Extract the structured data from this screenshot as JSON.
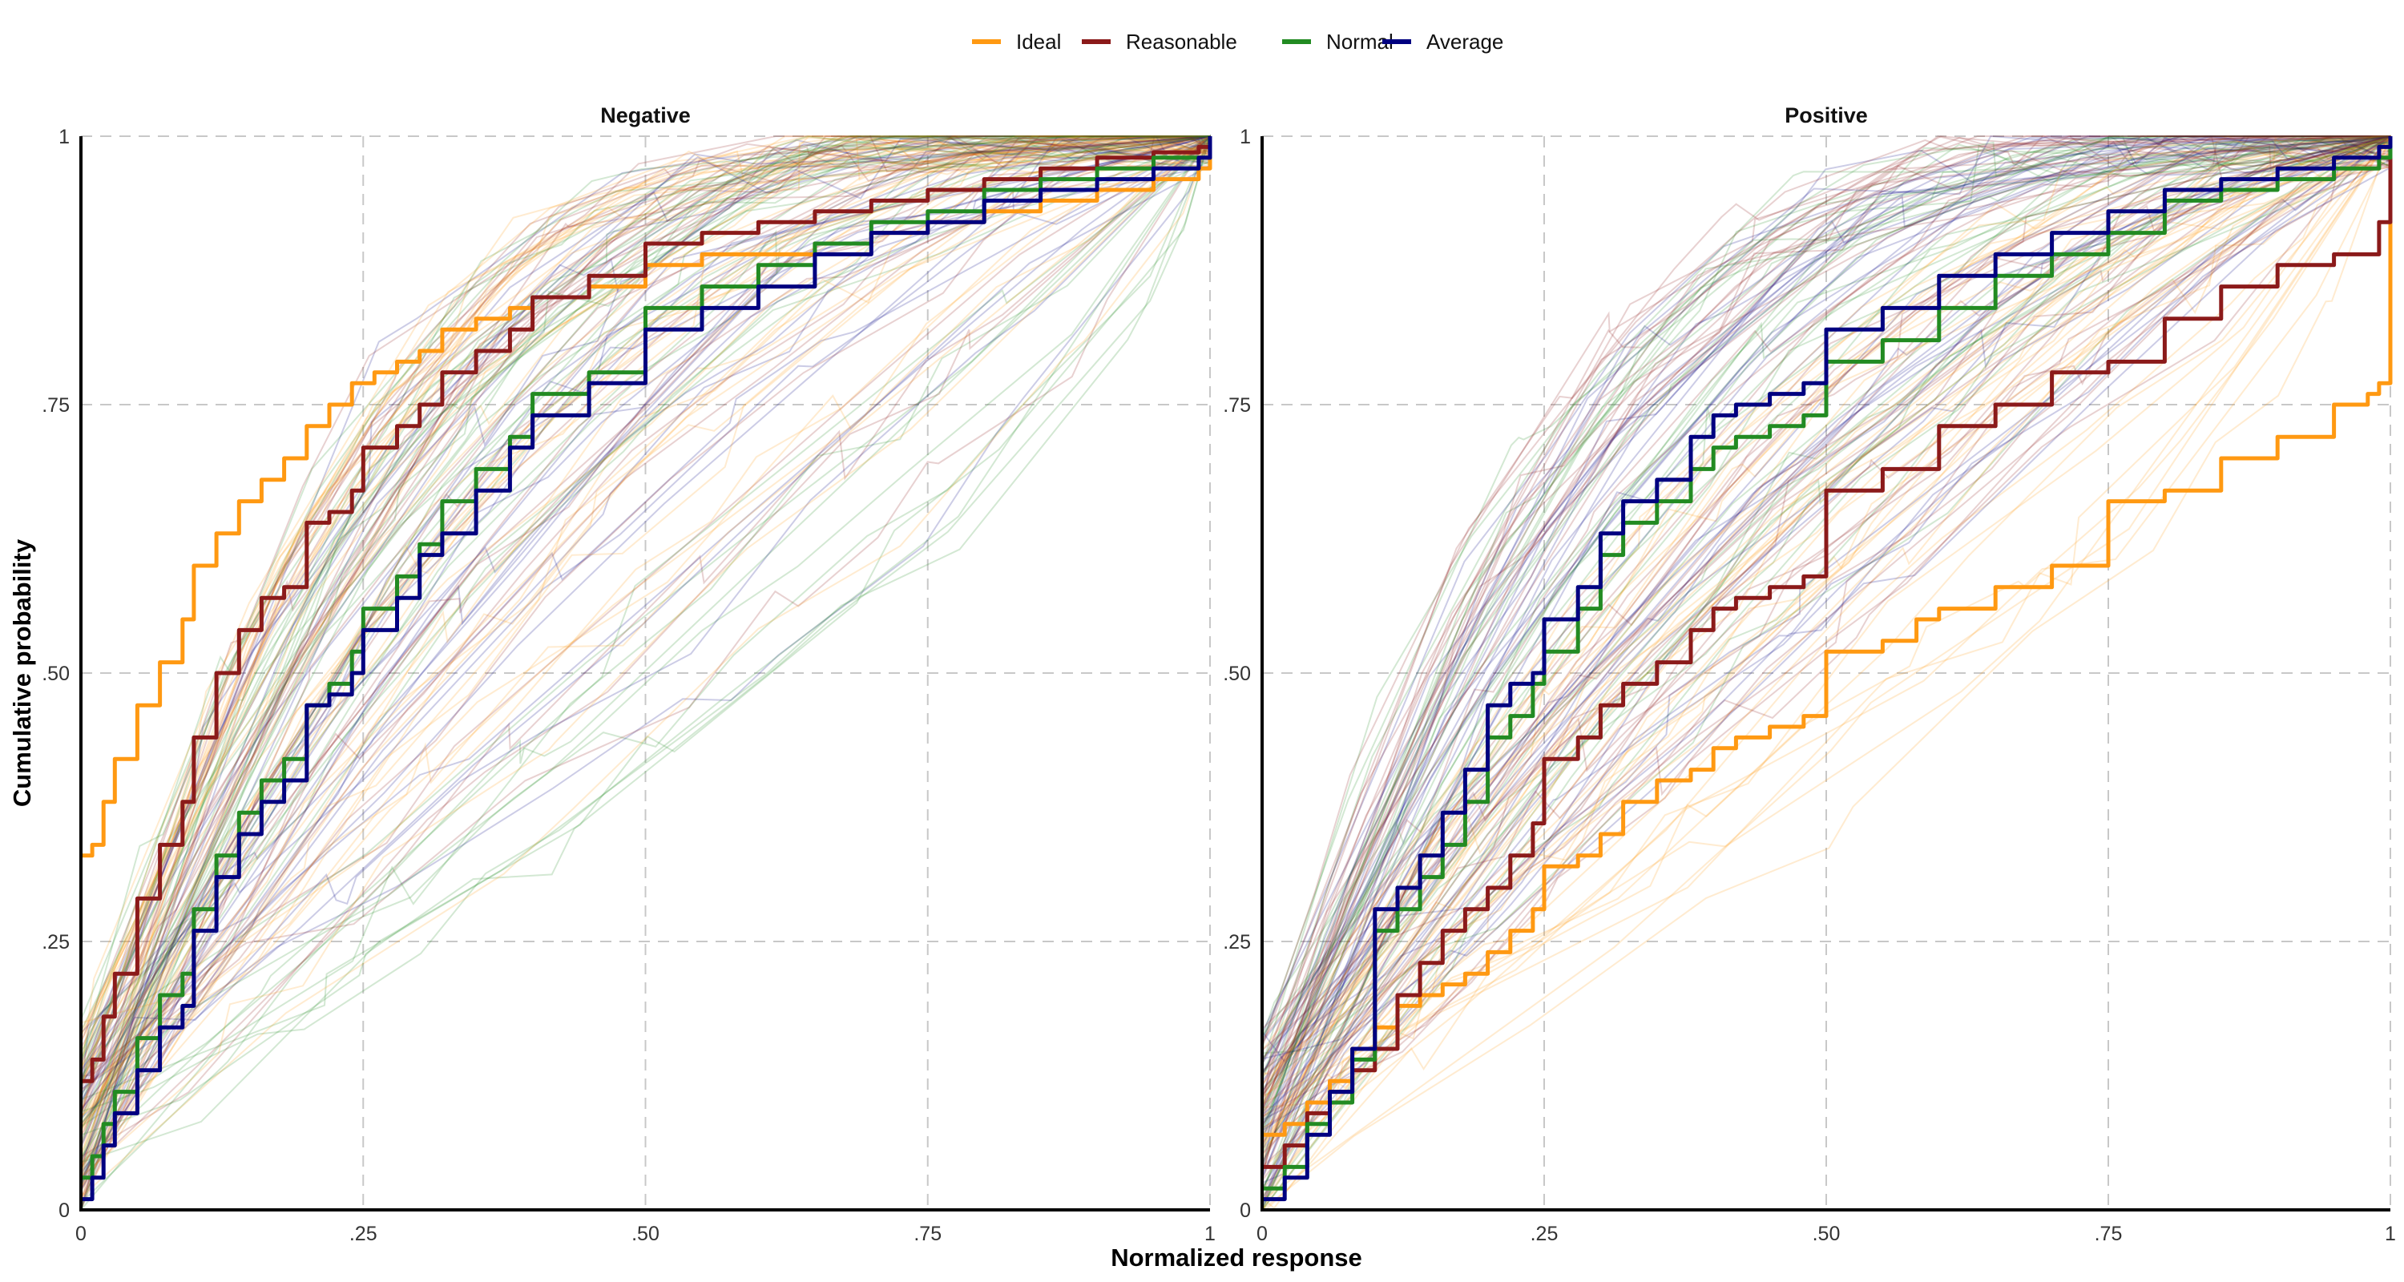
{
  "chart_data": {
    "type": "line",
    "title": "",
    "xlabel": "Normalized response",
    "ylabel": "Cumulative probability",
    "xlim": [
      0,
      1
    ],
    "ylim": [
      0,
      1
    ],
    "grid": "dashed at ticks",
    "legend_position": "top-center",
    "x_ticks": [
      {
        "value": 0,
        "label": "0"
      },
      {
        "value": 0.25,
        "label": ".25"
      },
      {
        "value": 0.5,
        "label": ".50"
      },
      {
        "value": 0.75,
        "label": ".75"
      },
      {
        "value": 1,
        "label": "1"
      }
    ],
    "y_ticks": [
      {
        "value": 0,
        "label": "0"
      },
      {
        "value": 0.25,
        "label": ".25"
      },
      {
        "value": 0.5,
        "label": ".50"
      },
      {
        "value": 0.75,
        "label": ".75"
      },
      {
        "value": 1,
        "label": "1"
      }
    ],
    "legend": [
      {
        "name": "Ideal",
        "color": "#FF9912"
      },
      {
        "name": "Reasonable",
        "color": "#8B1A1A"
      },
      {
        "name": "Normal",
        "color": "#228B22"
      },
      {
        "name": "Average",
        "color": "#000080"
      }
    ],
    "panels": [
      {
        "title": "Negative",
        "series": [
          {
            "name": "Ideal",
            "x": [
              0,
              0.01,
              0.02,
              0.03,
              0.05,
              0.07,
              0.09,
              0.1,
              0.12,
              0.14,
              0.16,
              0.18,
              0.2,
              0.22,
              0.24,
              0.26,
              0.28,
              0.3,
              0.32,
              0.35,
              0.38,
              0.4,
              0.45,
              0.5,
              0.55,
              0.6,
              0.65,
              0.7,
              0.75,
              0.8,
              0.85,
              0.9,
              0.95,
              0.99,
              1
            ],
            "y": [
              0.33,
              0.34,
              0.38,
              0.42,
              0.47,
              0.51,
              0.55,
              0.6,
              0.63,
              0.66,
              0.68,
              0.7,
              0.73,
              0.75,
              0.77,
              0.78,
              0.79,
              0.8,
              0.82,
              0.83,
              0.84,
              0.85,
              0.86,
              0.88,
              0.89,
              0.89,
              0.9,
              0.91,
              0.92,
              0.93,
              0.94,
              0.95,
              0.96,
              0.97,
              1
            ]
          },
          {
            "name": "Reasonable",
            "x": [
              0,
              0.01,
              0.02,
              0.03,
              0.05,
              0.07,
              0.09,
              0.1,
              0.12,
              0.14,
              0.16,
              0.18,
              0.2,
              0.22,
              0.24,
              0.25,
              0.28,
              0.3,
              0.32,
              0.35,
              0.38,
              0.4,
              0.45,
              0.5,
              0.55,
              0.6,
              0.65,
              0.7,
              0.75,
              0.8,
              0.85,
              0.9,
              0.95,
              0.99,
              1
            ],
            "y": [
              0.12,
              0.14,
              0.18,
              0.22,
              0.29,
              0.34,
              0.38,
              0.44,
              0.5,
              0.54,
              0.57,
              0.58,
              0.64,
              0.65,
              0.67,
              0.71,
              0.73,
              0.75,
              0.78,
              0.8,
              0.82,
              0.85,
              0.87,
              0.9,
              0.91,
              0.92,
              0.93,
              0.94,
              0.95,
              0.96,
              0.97,
              0.98,
              0.985,
              0.99,
              1
            ]
          },
          {
            "name": "Normal",
            "x": [
              0,
              0.01,
              0.02,
              0.03,
              0.05,
              0.07,
              0.09,
              0.1,
              0.12,
              0.14,
              0.16,
              0.18,
              0.2,
              0.22,
              0.24,
              0.25,
              0.28,
              0.3,
              0.32,
              0.35,
              0.38,
              0.4,
              0.45,
              0.5,
              0.55,
              0.6,
              0.65,
              0.7,
              0.75,
              0.8,
              0.85,
              0.9,
              0.95,
              0.99,
              1
            ],
            "y": [
              0.03,
              0.05,
              0.08,
              0.11,
              0.16,
              0.2,
              0.22,
              0.28,
              0.33,
              0.37,
              0.4,
              0.42,
              0.47,
              0.49,
              0.52,
              0.56,
              0.59,
              0.62,
              0.66,
              0.69,
              0.72,
              0.76,
              0.78,
              0.84,
              0.86,
              0.88,
              0.9,
              0.92,
              0.93,
              0.95,
              0.96,
              0.97,
              0.98,
              0.98,
              1
            ]
          },
          {
            "name": "Average",
            "x": [
              0,
              0.01,
              0.02,
              0.03,
              0.05,
              0.07,
              0.09,
              0.1,
              0.12,
              0.14,
              0.16,
              0.18,
              0.2,
              0.22,
              0.24,
              0.25,
              0.28,
              0.3,
              0.32,
              0.35,
              0.38,
              0.4,
              0.45,
              0.5,
              0.55,
              0.6,
              0.65,
              0.7,
              0.75,
              0.8,
              0.85,
              0.9,
              0.95,
              0.99,
              1
            ],
            "y": [
              0.01,
              0.03,
              0.06,
              0.09,
              0.13,
              0.17,
              0.19,
              0.26,
              0.31,
              0.35,
              0.38,
              0.4,
              0.47,
              0.48,
              0.5,
              0.54,
              0.57,
              0.61,
              0.63,
              0.67,
              0.71,
              0.74,
              0.77,
              0.82,
              0.84,
              0.86,
              0.89,
              0.91,
              0.92,
              0.94,
              0.95,
              0.96,
              0.97,
              0.98,
              1
            ]
          }
        ]
      },
      {
        "title": "Positive",
        "series": [
          {
            "name": "Ideal",
            "x": [
              0,
              0.02,
              0.04,
              0.06,
              0.08,
              0.1,
              0.12,
              0.14,
              0.16,
              0.18,
              0.2,
              0.22,
              0.24,
              0.25,
              0.28,
              0.3,
              0.32,
              0.35,
              0.38,
              0.4,
              0.42,
              0.45,
              0.48,
              0.5,
              0.52,
              0.55,
              0.58,
              0.6,
              0.65,
              0.7,
              0.75,
              0.8,
              0.85,
              0.9,
              0.95,
              0.98,
              0.99,
              1
            ],
            "y": [
              0.07,
              0.08,
              0.1,
              0.12,
              0.15,
              0.17,
              0.19,
              0.2,
              0.21,
              0.22,
              0.24,
              0.26,
              0.28,
              0.32,
              0.33,
              0.35,
              0.38,
              0.4,
              0.41,
              0.43,
              0.44,
              0.45,
              0.46,
              0.52,
              0.52,
              0.53,
              0.55,
              0.56,
              0.58,
              0.6,
              0.66,
              0.67,
              0.7,
              0.72,
              0.75,
              0.76,
              0.77,
              1
            ]
          },
          {
            "name": "Reasonable",
            "x": [
              0,
              0.02,
              0.04,
              0.06,
              0.08,
              0.1,
              0.12,
              0.14,
              0.16,
              0.18,
              0.2,
              0.22,
              0.24,
              0.25,
              0.28,
              0.3,
              0.32,
              0.35,
              0.38,
              0.4,
              0.42,
              0.45,
              0.48,
              0.5,
              0.55,
              0.6,
              0.65,
              0.7,
              0.75,
              0.8,
              0.85,
              0.9,
              0.95,
              0.99,
              1
            ],
            "y": [
              0.04,
              0.06,
              0.09,
              0.11,
              0.13,
              0.15,
              0.2,
              0.23,
              0.26,
              0.28,
              0.3,
              0.33,
              0.36,
              0.42,
              0.44,
              0.47,
              0.49,
              0.51,
              0.54,
              0.56,
              0.57,
              0.58,
              0.59,
              0.67,
              0.69,
              0.73,
              0.75,
              0.78,
              0.79,
              0.83,
              0.86,
              0.88,
              0.89,
              0.92,
              1
            ]
          },
          {
            "name": "Normal",
            "x": [
              0,
              0.02,
              0.04,
              0.06,
              0.08,
              0.1,
              0.12,
              0.14,
              0.16,
              0.18,
              0.2,
              0.22,
              0.24,
              0.25,
              0.28,
              0.3,
              0.32,
              0.35,
              0.38,
              0.4,
              0.42,
              0.45,
              0.48,
              0.5,
              0.55,
              0.6,
              0.65,
              0.7,
              0.75,
              0.8,
              0.85,
              0.9,
              0.95,
              0.99,
              1
            ],
            "y": [
              0.02,
              0.04,
              0.08,
              0.1,
              0.14,
              0.26,
              0.28,
              0.31,
              0.34,
              0.38,
              0.44,
              0.46,
              0.49,
              0.52,
              0.56,
              0.61,
              0.64,
              0.66,
              0.69,
              0.71,
              0.72,
              0.73,
              0.74,
              0.79,
              0.81,
              0.84,
              0.87,
              0.89,
              0.91,
              0.94,
              0.95,
              0.96,
              0.97,
              0.98,
              1
            ]
          },
          {
            "name": "Average",
            "x": [
              0,
              0.02,
              0.04,
              0.06,
              0.08,
              0.1,
              0.12,
              0.14,
              0.16,
              0.18,
              0.2,
              0.22,
              0.24,
              0.25,
              0.28,
              0.3,
              0.32,
              0.35,
              0.38,
              0.4,
              0.42,
              0.45,
              0.48,
              0.5,
              0.55,
              0.6,
              0.65,
              0.7,
              0.75,
              0.8,
              0.85,
              0.9,
              0.95,
              0.99,
              1
            ],
            "y": [
              0.01,
              0.03,
              0.07,
              0.11,
              0.15,
              0.28,
              0.3,
              0.33,
              0.37,
              0.41,
              0.47,
              0.49,
              0.5,
              0.55,
              0.58,
              0.63,
              0.66,
              0.68,
              0.72,
              0.74,
              0.75,
              0.76,
              0.77,
              0.82,
              0.84,
              0.87,
              0.89,
              0.91,
              0.93,
              0.95,
              0.96,
              0.97,
              0.98,
              0.99,
              1
            ]
          }
        ]
      }
    ],
    "background_traces": {
      "description": "Many thin semi-transparent individual cumulative curves in each of the four legend colors",
      "opacity": 0.2
    }
  }
}
